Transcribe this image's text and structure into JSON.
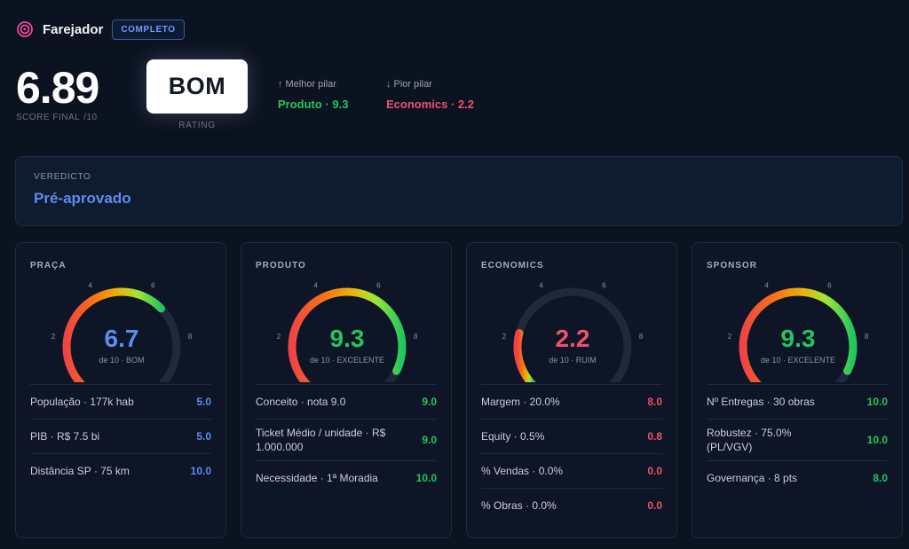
{
  "header": {
    "title": "Farejador",
    "status_badge": "COMPLETO",
    "logo_icon": "target-icon",
    "logo_color": "#ec4899"
  },
  "score": {
    "value": "6.89",
    "label": "SCORE FINAL",
    "scale": "/10"
  },
  "rating": {
    "value": "BOM",
    "label": "RATING"
  },
  "best_pillar": {
    "caption": "Melhor pilar",
    "arrow": "↑",
    "value": "Produto · 9.3"
  },
  "worst_pillar": {
    "caption": "Pior pilar",
    "arrow": "↓",
    "value": "Economics · 2.2"
  },
  "verdict": {
    "label": "VEREDICTO",
    "value": "Pré-aprovado"
  },
  "cards": [
    {
      "title": "PRAÇA",
      "score": 6.7,
      "score_text": "6.7",
      "subtitle": "de 10 · BOM",
      "color": "#5b8dee",
      "ticks": [
        "0",
        "2",
        "4",
        "6",
        "8",
        "10"
      ],
      "metrics": [
        {
          "label": "População · 177k hab",
          "value": "5.0",
          "tone": "blue"
        },
        {
          "label": "PIB · R$ 7.5 bi",
          "value": "5.0",
          "tone": "blue"
        },
        {
          "label": "Distância SP · 75 km",
          "value": "10.0",
          "tone": "blue"
        }
      ]
    },
    {
      "title": "PRODUTO",
      "score": 9.3,
      "score_text": "9.3",
      "subtitle": "de 10 · EXCELENTE",
      "color": "#22c55e",
      "ticks": [
        "0",
        "2",
        "4",
        "6",
        "8",
        "10"
      ],
      "metrics": [
        {
          "label": "Conceito · nota 9.0",
          "value": "9.0",
          "tone": "green"
        },
        {
          "label": "Ticket Médio / unidade · R$ 1.000.000",
          "value": "9.0",
          "tone": "green"
        },
        {
          "label": "Necessidade · 1ª Moradia",
          "value": "10.0",
          "tone": "green"
        }
      ]
    },
    {
      "title": "ECONOMICS",
      "score": 2.2,
      "score_text": "2.2",
      "subtitle": "de 10 · RUIM",
      "color": "#f0506e",
      "ticks": [
        "0",
        "2",
        "4",
        "6",
        "8",
        "10"
      ],
      "metrics": [
        {
          "label": "Margem · 20.0%",
          "value": "8.0",
          "tone": "red"
        },
        {
          "label": "Equity · 0.5%",
          "value": "0.8",
          "tone": "red"
        },
        {
          "label": "% Vendas · 0.0%",
          "value": "0.0",
          "tone": "red"
        },
        {
          "label": "% Obras · 0.0%",
          "value": "0.0",
          "tone": "red"
        }
      ]
    },
    {
      "title": "SPONSOR",
      "score": 9.3,
      "score_text": "9.3",
      "subtitle": "de 10 · EXCELENTE",
      "color": "#22c55e",
      "ticks": [
        "0",
        "2",
        "4",
        "6",
        "8",
        "10"
      ],
      "metrics": [
        {
          "label": "Nº Entregas · 30 obras",
          "value": "10.0",
          "tone": "green"
        },
        {
          "label": "Robustez · 75.0% (PL/VGV)",
          "value": "10.0",
          "tone": "green"
        },
        {
          "label": "Governança · 8 pts",
          "value": "8.0",
          "tone": "green"
        }
      ]
    }
  ]
}
